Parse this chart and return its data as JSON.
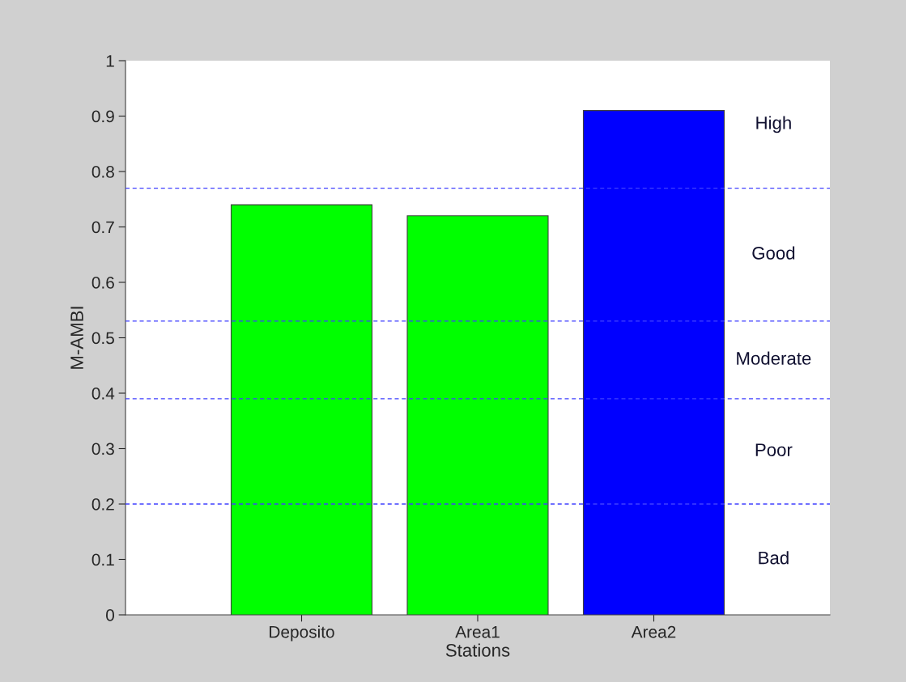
{
  "chart_data": {
    "type": "bar",
    "xlabel": "Stations",
    "ylabel": "M-AMBI",
    "categories": [
      "Deposito",
      "Area1",
      "Area2"
    ],
    "values": [
      0.74,
      0.72,
      0.91
    ],
    "colors": [
      "#00ff00",
      "#00ff00",
      "#0000ff"
    ],
    "ylim": [
      0,
      1
    ],
    "yticks": [
      0,
      0.1,
      0.2,
      0.3,
      0.4,
      0.5,
      0.6,
      0.7,
      0.8,
      0.9,
      1
    ],
    "grid": false,
    "legend": false,
    "ref_lines": [
      {
        "axis": "y",
        "value": 0.2,
        "color": "#4040ff",
        "line_style": "dashed"
      },
      {
        "axis": "y",
        "value": 0.39,
        "color": "#4040ff",
        "line_style": "dashed"
      },
      {
        "axis": "y",
        "value": 0.53,
        "color": "#4040ff",
        "line_style": "dashed"
      },
      {
        "axis": "y",
        "value": 0.77,
        "color": "#4040ff",
        "line_style": "dashed"
      }
    ],
    "annotations": [
      "High",
      "Good",
      "Moderate",
      "Poor",
      "Bad"
    ]
  }
}
